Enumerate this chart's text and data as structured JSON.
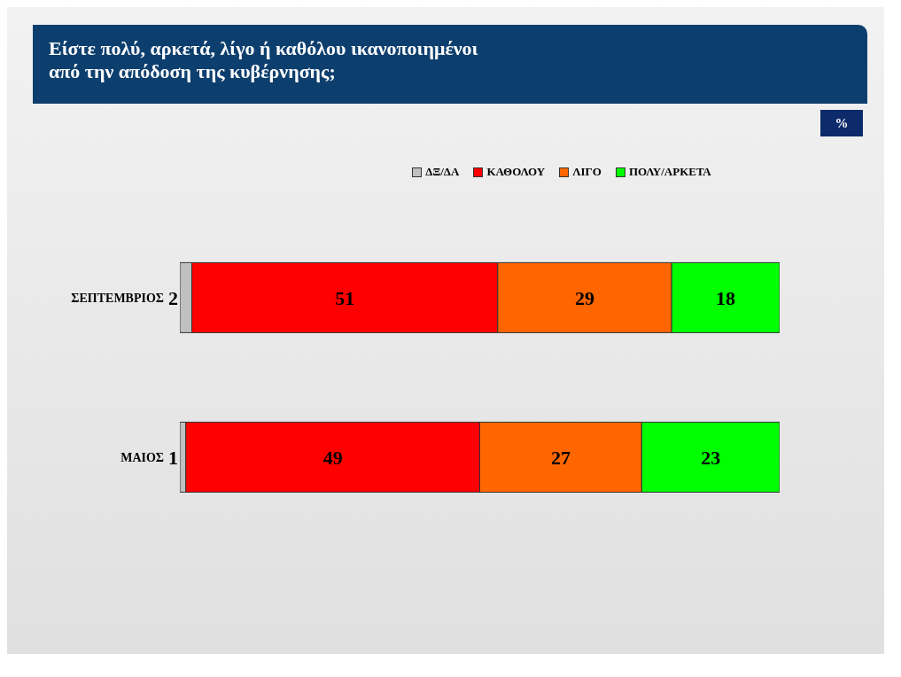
{
  "chart_data": {
    "type": "bar",
    "title": "Είστε πολύ, αρκετά, λίγο ή καθόλου ικανοποιημένοι\nαπό την απόδοση της κυβέρνησης;",
    "annotations": [
      "%"
    ],
    "categories": [
      "ΣΕΠΤΕΜΒΡΙΟΣ",
      "ΜΑΙΟΣ"
    ],
    "orientation": "horizontal",
    "stacked": true,
    "xlim": [
      0,
      100
    ],
    "tick_labels": "y",
    "data_labels": true,
    "legend": "top",
    "grid": false,
    "series": [
      {
        "name": "ΔΞ/ΔΑ",
        "color": "#c0c0c0",
        "values": [
          2,
          1
        ]
      },
      {
        "name": "ΚΑΘΟΛΟΥ",
        "color": "#ff0000",
        "values": [
          51,
          49
        ]
      },
      {
        "name": "ΛΙΓΟ",
        "color": "#ff6600",
        "values": [
          29,
          27
        ]
      },
      {
        "name": "ΠΟΛΥ/ΑΡΚΕΤΑ",
        "color": "#00ff00",
        "values": [
          18,
          23
        ]
      }
    ]
  }
}
